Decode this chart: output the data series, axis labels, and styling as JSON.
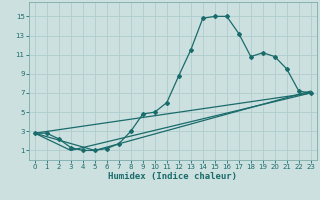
{
  "xlabel": "Humidex (Indice chaleur)",
  "xlim": [
    -0.5,
    23.5
  ],
  "ylim": [
    0,
    16.5
  ],
  "xticks": [
    0,
    1,
    2,
    3,
    4,
    5,
    6,
    7,
    8,
    9,
    10,
    11,
    12,
    13,
    14,
    15,
    16,
    17,
    18,
    19,
    20,
    21,
    22,
    23
  ],
  "yticks": [
    1,
    3,
    5,
    7,
    9,
    11,
    13,
    15
  ],
  "bg_color": "#cde0e0",
  "grid_color": "#b0cccc",
  "line_color": "#1a6b6b",
  "line1_x": [
    0,
    1,
    2,
    3,
    4,
    5,
    6,
    7,
    8,
    9,
    10,
    11,
    12,
    13,
    14,
    15,
    16,
    17,
    18,
    19,
    20,
    21,
    22,
    23
  ],
  "line1_y": [
    2.8,
    2.8,
    2.2,
    1.3,
    1.0,
    1.0,
    1.2,
    1.7,
    3.0,
    4.8,
    5.0,
    6.0,
    8.8,
    11.5,
    14.8,
    15.0,
    15.0,
    13.2,
    10.8,
    11.2,
    10.8,
    9.5,
    7.2,
    7.0
  ],
  "line2_x": [
    0,
    3,
    23
  ],
  "line2_y": [
    2.8,
    1.0,
    7.0
  ],
  "line3_x": [
    0,
    5,
    23
  ],
  "line3_y": [
    2.8,
    1.0,
    7.2
  ],
  "line4_x": [
    0,
    23
  ],
  "line4_y": [
    2.8,
    7.0
  ]
}
